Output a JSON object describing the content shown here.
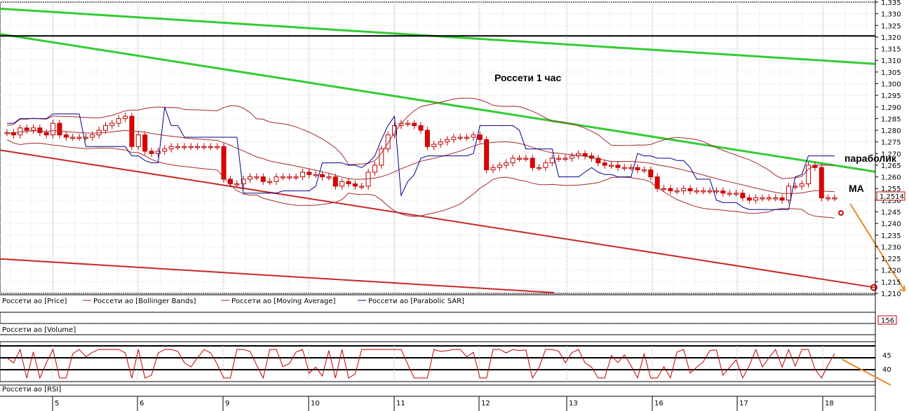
{
  "chart_data": {
    "type": "candlestick",
    "title": "Россети   1 час",
    "annotations": [
      "параболик",
      "МА"
    ],
    "price_axis": {
      "ylim": [
        1.21,
        1.335
      ],
      "ticks": [
        "1,335",
        "1,330",
        "1,325",
        "1,320",
        "1,315",
        "1,310",
        "1,305",
        "1,300",
        "1,295",
        "1,290",
        "1,285",
        "1,280",
        "1,275",
        "1,270",
        "1,265",
        "1,260",
        "1,255",
        "1,250",
        "1,245",
        "1,240",
        "1,235",
        "1,230",
        "1,225",
        "1,220",
        "1,215",
        "1,210"
      ],
      "last_price_label": "1,2514"
    },
    "x_axis": {
      "ticks": [
        "5",
        "6",
        "9",
        "10",
        "11",
        "12",
        "13",
        "16",
        "17",
        "18"
      ]
    },
    "legend": [
      {
        "name": "Россети ао [Price]",
        "color": "#e00000"
      },
      {
        "name": "Россети ао [Bollinger Bands]",
        "color": "#a52a2a"
      },
      {
        "name": "Россети ао [Moving Average]",
        "color": "#a52a2a"
      },
      {
        "name": "Россети ао [Parabolic SAR]",
        "color": "#00008b"
      }
    ],
    "close": [
      1.279,
      1.278,
      1.281,
      1.28,
      1.281,
      1.279,
      1.278,
      1.283,
      1.278,
      1.277,
      1.277,
      1.277,
      1.277,
      1.278,
      1.28,
      1.282,
      1.283,
      1.285,
      1.286,
      1.273,
      1.278,
      1.271,
      1.27,
      1.271,
      1.272,
      1.273,
      1.273,
      1.273,
      1.273,
      1.273,
      1.273,
      1.273,
      1.273,
      1.259,
      1.257,
      1.257,
      1.259,
      1.26,
      1.26,
      1.258,
      1.258,
      1.26,
      1.26,
      1.26,
      1.26,
      1.262,
      1.261,
      1.261,
      1.26,
      1.26,
      1.256,
      1.258,
      1.257,
      1.256,
      1.256,
      1.262,
      1.265,
      1.272,
      1.278,
      1.282,
      1.283,
      1.283,
      1.282,
      1.28,
      1.273,
      1.274,
      1.275,
      1.276,
      1.277,
      1.277,
      1.277,
      1.278,
      1.276,
      1.263,
      1.264,
      1.265,
      1.266,
      1.268,
      1.268,
      1.268,
      1.264,
      1.264,
      1.266,
      1.268,
      1.268,
      1.268,
      1.269,
      1.27,
      1.269,
      1.268,
      1.266,
      1.265,
      1.265,
      1.264,
      1.264,
      1.264,
      1.263,
      1.263,
      1.26,
      1.255,
      1.255,
      1.254,
      1.254,
      1.255,
      1.254,
      1.254,
      1.254,
      1.254,
      1.254,
      1.253,
      1.253,
      1.253,
      1.251,
      1.25,
      1.251,
      1.251,
      1.251,
      1.251,
      1.25,
      1.256,
      1.256,
      1.257,
      1.265,
      1.264,
      1.251,
      1.251,
      1.251
    ],
    "volume_label": "156",
    "rsi_axis": {
      "levels_labeled": [
        "45",
        "40"
      ]
    },
    "panes": {
      "volume_label": "Россети ао [Volume]",
      "rsi_label": "Россети ао [RSI]"
    }
  }
}
